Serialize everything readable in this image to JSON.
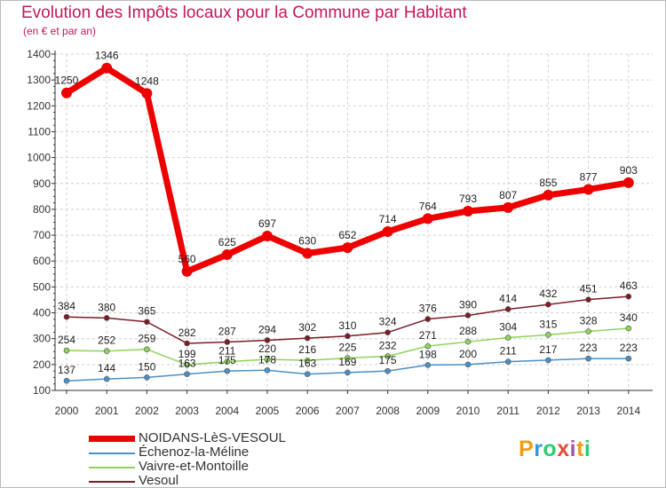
{
  "title": "Evolution des Impôts locaux pour la Commune par Habitant",
  "subtitle": "(en € et par an)",
  "logo": {
    "chars": [
      "P",
      "r",
      "o",
      "x",
      "i",
      "t",
      "i"
    ],
    "colors": [
      "#f39c12",
      "#3498db",
      "#2ecc71",
      "#e74c3c",
      "#9b59b6",
      "#f39c12",
      "#2ecc71"
    ]
  },
  "colors": {
    "title": "#c2185b",
    "grid": "#d0d0d0",
    "axis": "#333333"
  },
  "chart_data": {
    "type": "line",
    "title": "Evolution des Impôts locaux pour la Commune par Habitant",
    "ylabel": "(en € et par an)",
    "xlabel": "",
    "ylim": [
      100,
      1400
    ],
    "yticks": [
      100,
      200,
      300,
      400,
      500,
      600,
      700,
      800,
      900,
      1000,
      1100,
      1200,
      1300,
      1400
    ],
    "x": [
      "2000",
      "2001",
      "2002",
      "2003",
      "2004",
      "2005",
      "2006",
      "2007",
      "2008",
      "2009",
      "2010",
      "2011",
      "2012",
      "2013",
      "2014"
    ],
    "series": [
      {
        "name": "Vesoul",
        "color": "#7b1c26",
        "values": [
          384,
          380,
          365,
          282,
          287,
          294,
          302,
          310,
          324,
          376,
          390,
          414,
          432,
          451,
          463
        ]
      },
      {
        "name": "Vaivre-et-Montoille",
        "color": "#8fd35b",
        "values": [
          254,
          252,
          259,
          199,
          211,
          220,
          216,
          225,
          232,
          271,
          288,
          304,
          315,
          328,
          340
        ]
      },
      {
        "name": "Échenoz-la-Méline",
        "color": "#4a90c8",
        "values": [
          137,
          144,
          150,
          163,
          175,
          178,
          163,
          169,
          175,
          198,
          200,
          211,
          217,
          223,
          223
        ]
      },
      {
        "name": "NOIDANS-LèS-VESOUL",
        "color": "#ee0000",
        "values": [
          1250,
          1346,
          1248,
          560,
          625,
          697,
          630,
          652,
          714,
          764,
          793,
          807,
          855,
          877,
          903
        ]
      }
    ],
    "legend_order": [
      "NOIDANS-LèS-VESOUL",
      "Échenoz-la-Méline",
      "Vaivre-et-Montoille",
      "Vesoul"
    ],
    "legend": "bottom-left",
    "grid": true
  }
}
